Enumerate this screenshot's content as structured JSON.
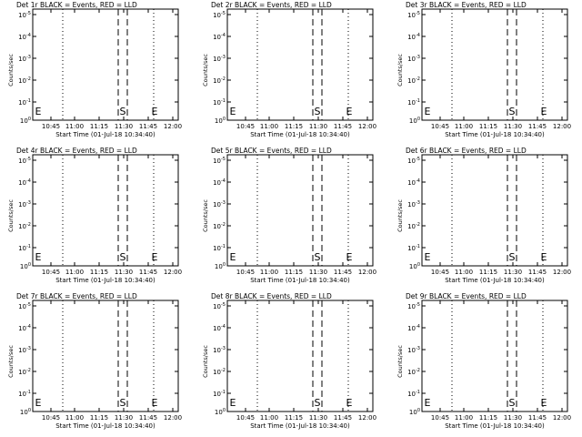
{
  "chart_data": [
    {
      "type": "line",
      "title": "Det 1r BLACK = Events, RED = LLD",
      "xlabel": "Start Time (01-Jul-18 10:34:40)",
      "ylabel": "Counts/sec",
      "x_tick_labels": [
        "10:45",
        "11:00",
        "11:15",
        "11:30",
        "11:45",
        "12:00"
      ],
      "y_tick_labels": [
        "10^0",
        "10^-1",
        "10^-2",
        "10^-3",
        "10^-4",
        "10^-5"
      ],
      "ylim_log10": [
        -5,
        0
      ],
      "dotted_lines": [
        "E",
        "10:45",
        "S-E"
      ],
      "dashed_lines": [
        "S-left",
        "S-right"
      ],
      "markers": [
        {
          "letter": "E",
          "at": "start"
        },
        {
          "letter": "S",
          "at": "sleft"
        },
        {
          "letter": "E",
          "at": "eright"
        }
      ],
      "series": []
    },
    {
      "type": "line",
      "title": "Det 2r BLACK = Events, RED = LLD",
      "xlabel": "Start Time (01-Jul-18 10:34:40)",
      "ylabel": "Counts/sec",
      "x_tick_labels": [
        "10:45",
        "11:00",
        "11:15",
        "11:30",
        "11:45",
        "12:00"
      ],
      "y_tick_labels": [
        "10^0",
        "10^-1",
        "10^-2",
        "10^-3",
        "10^-4",
        "10^-5"
      ],
      "ylim_log10": [
        -5,
        0
      ],
      "markers": [
        {
          "letter": "E",
          "at": "start"
        },
        {
          "letter": "S",
          "at": "sleft"
        },
        {
          "letter": "E",
          "at": "eright"
        }
      ],
      "series": []
    },
    {
      "type": "line",
      "title": "Det 3r BLACK = Events, RED = LLD",
      "xlabel": "Start Time (01-Jul-18 10:34:40)",
      "ylabel": "Counts/sec",
      "x_tick_labels": [
        "10:45",
        "11:00",
        "11:15",
        "11:30",
        "11:45",
        "12:00"
      ],
      "y_tick_labels": [
        "10^0",
        "10^-1",
        "10^-2",
        "10^-3",
        "10^-4",
        "10^-5"
      ],
      "ylim_log10": [
        -5,
        0
      ],
      "markers": [
        {
          "letter": "E",
          "at": "start"
        },
        {
          "letter": "S",
          "at": "sleft"
        },
        {
          "letter": "E",
          "at": "eright"
        }
      ],
      "series": []
    },
    {
      "type": "line",
      "title": "Det 4r BLACK = Events, RED = LLD",
      "xlabel": "Start Time (01-Jul-18 10:34:40)",
      "ylabel": "Counts/sec",
      "x_tick_labels": [
        "10:45",
        "11:00",
        "11:15",
        "11:30",
        "11:45",
        "12:00"
      ],
      "y_tick_labels": [
        "10^0",
        "10^-1",
        "10^-2",
        "10^-3",
        "10^-4",
        "10^-5"
      ],
      "ylim_log10": [
        -5,
        0
      ],
      "markers": [
        {
          "letter": "E",
          "at": "start"
        },
        {
          "letter": "S",
          "at": "sleft"
        },
        {
          "letter": "E",
          "at": "eright"
        }
      ],
      "series": []
    },
    {
      "type": "line",
      "title": "Det 5r BLACK = Events, RED = LLD",
      "xlabel": "Start Time (01-Jul-18 10:34:40)",
      "ylabel": "Counts/sec",
      "x_tick_labels": [
        "10:45",
        "11:00",
        "11:15",
        "11:30",
        "11:45",
        "12:00"
      ],
      "y_tick_labels": [
        "10^0",
        "10^-1",
        "10^-2",
        "10^-3",
        "10^-4",
        "10^-5"
      ],
      "ylim_log10": [
        -5,
        0
      ],
      "markers": [
        {
          "letter": "E",
          "at": "start"
        },
        {
          "letter": "S",
          "at": "sleft"
        },
        {
          "letter": "E",
          "at": "eright"
        }
      ],
      "series": []
    },
    {
      "type": "line",
      "title": "Det 6r BLACK = Events, RED = LLD",
      "xlabel": "Start Time (01-Jul-18 10:34:40)",
      "ylabel": "Counts/sec",
      "x_tick_labels": [
        "10:45",
        "11:00",
        "11:15",
        "11:30",
        "11:45",
        "12:00"
      ],
      "y_tick_labels": [
        "10^0",
        "10^-1",
        "10^-2",
        "10^-3",
        "10^-4",
        "10^-5"
      ],
      "ylim_log10": [
        -5,
        0
      ],
      "markers": [
        {
          "letter": "E",
          "at": "start"
        },
        {
          "letter": "S",
          "at": "sleft"
        },
        {
          "letter": "E",
          "at": "eright"
        }
      ],
      "series": []
    },
    {
      "type": "line",
      "title": "Det 7r BLACK = Events, RED = LLD",
      "xlabel": "Start Time (01-Jul-18 10:34:40)",
      "ylabel": "Counts/sec",
      "x_tick_labels": [
        "10:45",
        "11:00",
        "11:15",
        "11:30",
        "11:45",
        "12:00"
      ],
      "y_tick_labels": [
        "10^0",
        "10^-1",
        "10^-2",
        "10^-3",
        "10^-4",
        "10^-5"
      ],
      "ylim_log10": [
        -5,
        0
      ],
      "markers": [
        {
          "letter": "E",
          "at": "start"
        },
        {
          "letter": "S",
          "at": "sleft"
        },
        {
          "letter": "E",
          "at": "eright"
        }
      ],
      "series": []
    },
    {
      "type": "line",
      "title": "Det 8r BLACK = Events, RED = LLD",
      "xlabel": "Start Time (01-Jul-18 10:34:40)",
      "ylabel": "Counts/sec",
      "x_tick_labels": [
        "10:45",
        "11:00",
        "11:15",
        "11:30",
        "11:45",
        "12:00"
      ],
      "y_tick_labels": [
        "10^0",
        "10^-1",
        "10^-2",
        "10^-3",
        "10^-4",
        "10^-5"
      ],
      "ylim_log10": [
        -5,
        0
      ],
      "markers": [
        {
          "letter": "E",
          "at": "start"
        },
        {
          "letter": "S",
          "at": "sleft"
        },
        {
          "letter": "E",
          "at": "eright"
        }
      ],
      "series": []
    },
    {
      "type": "line",
      "title": "Det 9r BLACK = Events, RED = LLD",
      "xlabel": "Start Time (01-Jul-18 10:34:40)",
      "ylabel": "Counts/sec",
      "x_tick_labels": [
        "10:45",
        "11:00",
        "11:15",
        "11:30",
        "11:45",
        "12:00"
      ],
      "y_tick_labels": [
        "10^0",
        "10^-1",
        "10^-2",
        "10^-3",
        "10^-4",
        "10^-5"
      ],
      "ylim_log10": [
        -5,
        0
      ],
      "markers": [
        {
          "letter": "E",
          "at": "start"
        },
        {
          "letter": "S",
          "at": "sleft"
        },
        {
          "letter": "E",
          "at": "eright"
        }
      ],
      "series": []
    }
  ]
}
